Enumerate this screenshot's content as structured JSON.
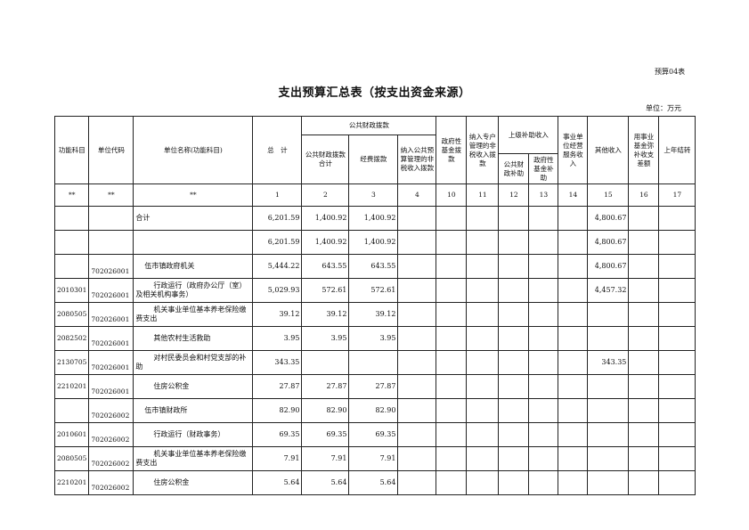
{
  "form_no": "预算04表",
  "title": "支出预算汇总表（按支出资金来源）",
  "unit": "单位：万元",
  "headers": {
    "func_code": "功能科目",
    "unit_code": "单位代码",
    "unit_name": "单位名称(功能科目)",
    "total": "总　计",
    "public_finance": "公共财政拨款",
    "pf_total": "公共财政拨款合计",
    "pf_expense": "经费拨款",
    "pf_nontax": "纳入公共预算管理的非税收入拨款",
    "gov_fund": "政府性基金拨款",
    "special_nontax": "纳入专户管理的非税收入拨款",
    "superior": "上级补助收入",
    "sup_public": "公共财政补助",
    "sup_gov": "政府性基金补助",
    "business": "事业单位经营服务收入",
    "other": "其他收入",
    "fund_balance": "用事业基金弥补收支差额",
    "carryover": "上年结转"
  },
  "index_row": [
    "**",
    "**",
    "**",
    "1",
    "2",
    "3",
    "4",
    "10",
    "11",
    "12",
    "13",
    "14",
    "15",
    "16",
    "17"
  ],
  "rows": [
    {
      "func": "",
      "code": "",
      "name": "合计",
      "indent": 0,
      "vals": [
        "6,201.59",
        "1,400.92",
        "1,400.92",
        "",
        "",
        "",
        "",
        "",
        "",
        "4,800.67",
        "",
        ""
      ]
    },
    {
      "func": "",
      "code": "",
      "name": "",
      "indent": 0,
      "vals": [
        "6,201.59",
        "1,400.92",
        "1,400.92",
        "",
        "",
        "",
        "",
        "",
        "",
        "4,800.67",
        "",
        ""
      ]
    },
    {
      "func": "",
      "code": "702026001",
      "name": "伍市镇政府机关",
      "indent": 1,
      "vals": [
        "5,444.22",
        "643.55",
        "643.55",
        "",
        "",
        "",
        "",
        "",
        "",
        "4,800.67",
        "",
        ""
      ]
    },
    {
      "func": "2010301",
      "code": "702026001",
      "name": "行政运行（政府办公厅（室）及相关机构事务）",
      "indent": 2,
      "vals": [
        "5,029.93",
        "572.61",
        "572.61",
        "",
        "",
        "",
        "",
        "",
        "",
        "4,457.32",
        "",
        ""
      ]
    },
    {
      "func": "2080505",
      "code": "702026001",
      "name": "机关事业单位基本养老保险缴费支出",
      "indent": 2,
      "vals": [
        "39.12",
        "39.12",
        "39.12",
        "",
        "",
        "",
        "",
        "",
        "",
        "",
        "",
        ""
      ]
    },
    {
      "func": "2082502",
      "code": "702026001",
      "name": "其他农村生活救助",
      "indent": 2,
      "vals": [
        "3.95",
        "3.95",
        "3.95",
        "",
        "",
        "",
        "",
        "",
        "",
        "",
        "",
        ""
      ]
    },
    {
      "func": "2130705",
      "code": "702026001",
      "name": "对村民委员会和村党支部的补助",
      "indent": 2,
      "vals": [
        "343.35",
        "",
        "",
        "",
        "",
        "",
        "",
        "",
        "",
        "343.35",
        "",
        ""
      ]
    },
    {
      "func": "2210201",
      "code": "702026001",
      "name": "住房公积金",
      "indent": 2,
      "vals": [
        "27.87",
        "27.87",
        "27.87",
        "",
        "",
        "",
        "",
        "",
        "",
        "",
        "",
        ""
      ]
    },
    {
      "func": "",
      "code": "702026002",
      "name": "伍市镇财政所",
      "indent": 1,
      "vals": [
        "82.90",
        "82.90",
        "82.90",
        "",
        "",
        "",
        "",
        "",
        "",
        "",
        "",
        ""
      ]
    },
    {
      "func": "2010601",
      "code": "702026002",
      "name": "行政运行（财政事务）",
      "indent": 2,
      "vals": [
        "69.35",
        "69.35",
        "69.35",
        "",
        "",
        "",
        "",
        "",
        "",
        "",
        "",
        ""
      ]
    },
    {
      "func": "2080505",
      "code": "702026002",
      "name": "机关事业单位基本养老保险缴费支出",
      "indent": 2,
      "vals": [
        "7.91",
        "7.91",
        "7.91",
        "",
        "",
        "",
        "",
        "",
        "",
        "",
        "",
        ""
      ]
    },
    {
      "func": "2210201",
      "code": "702026002",
      "name": "住房公积金",
      "indent": 2,
      "vals": [
        "5.64",
        "5.64",
        "5.64",
        "",
        "",
        "",
        "",
        "",
        "",
        "",
        "",
        ""
      ]
    }
  ]
}
